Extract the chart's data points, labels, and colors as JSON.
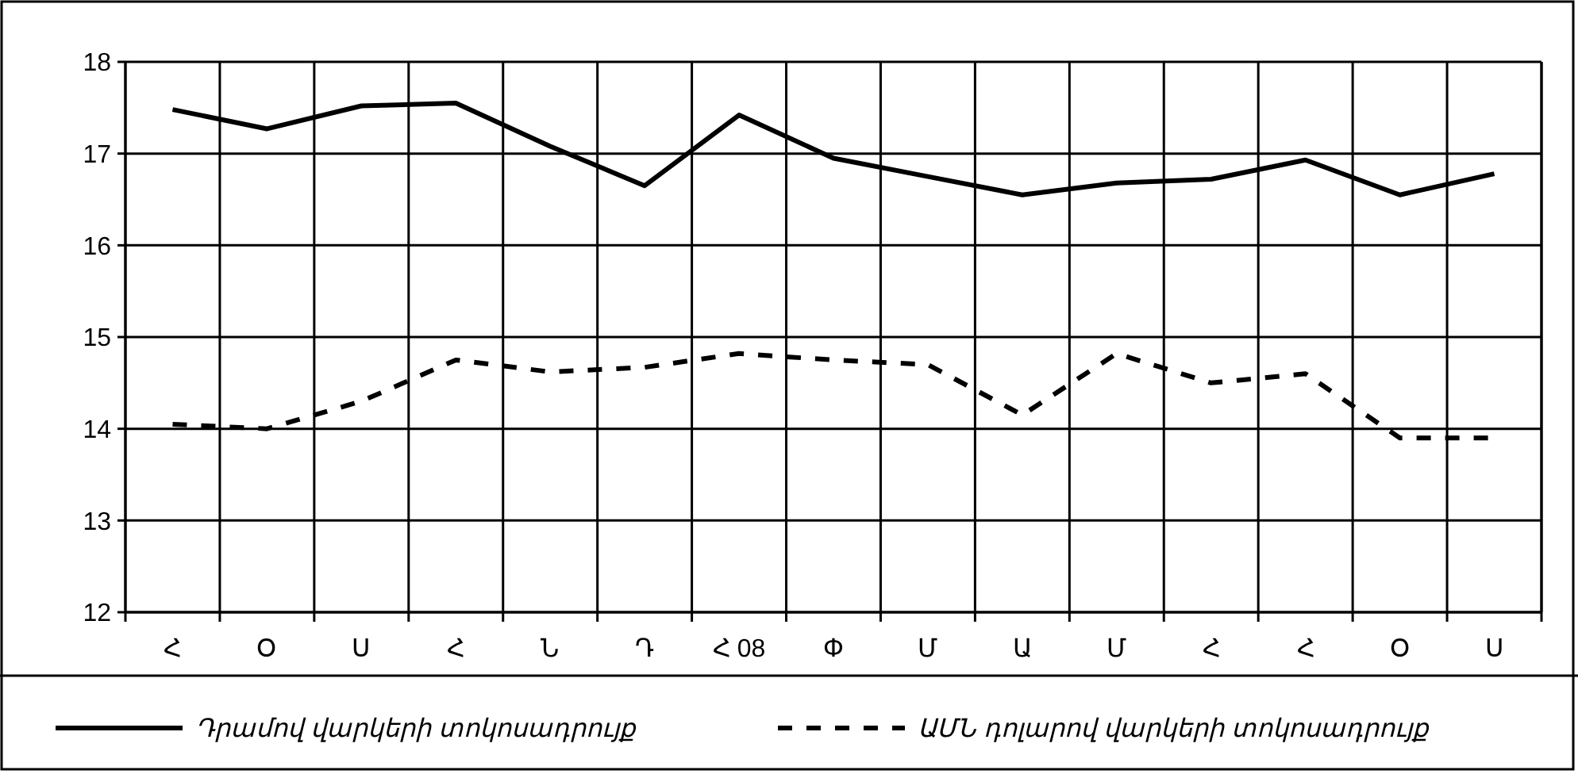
{
  "chart_data": {
    "type": "line",
    "categories": [
      "Հ",
      "Օ",
      "Ս",
      "Հ",
      "Ն",
      "Դ",
      "Հ 08",
      "Փ",
      "Մ",
      "Ա",
      "Մ",
      "Հ",
      "Հ",
      "Օ",
      "Ս"
    ],
    "series": [
      {
        "name": "Դրամով վարկերի տոկոսադրույք",
        "color": "#000000",
        "line_style": "solid",
        "values": [
          17.48,
          17.27,
          17.52,
          17.55,
          17.08,
          16.65,
          17.42,
          16.95,
          16.75,
          16.55,
          16.68,
          16.72,
          16.93,
          16.55,
          16.78
        ]
      },
      {
        "name": "ԱՄՆ դոլարով վարկերի տոկոսադրույք",
        "color": "#000000",
        "line_style": "dashed",
        "values": [
          14.05,
          14.0,
          14.3,
          14.75,
          14.62,
          14.67,
          14.82,
          14.75,
          14.7,
          14.15,
          14.82,
          14.5,
          14.6,
          13.9,
          13.9
        ]
      }
    ],
    "ylim": [
      12,
      18
    ],
    "yticks": [
      12,
      13,
      14,
      15,
      16,
      17,
      18
    ],
    "grid": true,
    "legend": "bottom",
    "marker": "none"
  }
}
